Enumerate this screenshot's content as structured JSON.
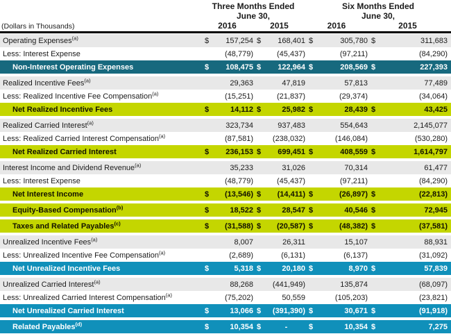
{
  "header": {
    "units_note": "(Dollars in Thousands)",
    "periods": [
      {
        "title": "Three Months Ended",
        "subtitle": "June 30,"
      },
      {
        "title": "Six Months Ended",
        "subtitle": "June 30,"
      }
    ],
    "years": [
      "2016",
      "2015",
      "2016",
      "2015"
    ]
  },
  "table": {
    "currency_symbol": "$",
    "rows": [
      {
        "label": "Operating Expenses",
        "sup": "(a)",
        "dollar": true,
        "bg": "gray",
        "values": [
          "157,254",
          "168,401",
          "305,780",
          "311,683"
        ],
        "gap_after": false
      },
      {
        "label": "Less: Interest Expense",
        "sup": "",
        "dollar": false,
        "bg": "white",
        "values": [
          "(48,779)",
          "(45,437)",
          "(97,211)",
          "(84,290)"
        ],
        "gap_after": false
      },
      {
        "label": "Non-Interest Operating Expenses",
        "sup": "",
        "dollar": true,
        "bg": "teal",
        "values": [
          "108,475",
          "122,964",
          "208,569",
          "227,393"
        ],
        "gap_after": true
      },
      {
        "label": "Realized Incentive Fees",
        "sup": "(a)",
        "dollar": false,
        "bg": "gray",
        "values": [
          "29,363",
          "47,819",
          "57,813",
          "77,489"
        ],
        "gap_after": false
      },
      {
        "label": "Less: Realized Incentive Fee Compensation",
        "sup": "(a)",
        "dollar": false,
        "bg": "white",
        "values": [
          "(15,251)",
          "(21,837)",
          "(29,374)",
          "(34,064)"
        ],
        "gap_after": false
      },
      {
        "label": "Net Realized Incentive Fees",
        "sup": "",
        "dollar": true,
        "bg": "green",
        "values": [
          "14,112",
          "25,982",
          "28,439",
          "43,425"
        ],
        "gap_after": true
      },
      {
        "label": "Realized Carried Interest",
        "sup": "(a)",
        "dollar": false,
        "bg": "gray",
        "values": [
          "323,734",
          "937,483",
          "554,643",
          "2,145,077"
        ],
        "gap_after": false
      },
      {
        "label": "Less: Realized Carried Interest Compensation",
        "sup": "(a)",
        "dollar": false,
        "bg": "white",
        "values": [
          "(87,581)",
          "(238,032)",
          "(146,084)",
          "(530,280)"
        ],
        "gap_after": false
      },
      {
        "label": "Net Realized Carried Interest",
        "sup": "",
        "dollar": true,
        "bg": "green",
        "values": [
          "236,153",
          "699,451",
          "408,559",
          "1,614,797"
        ],
        "gap_after": true
      },
      {
        "label": "Interest Income and Dividend Revenue",
        "sup": "(a)",
        "dollar": false,
        "bg": "gray",
        "values": [
          "35,233",
          "31,026",
          "70,314",
          "61,477"
        ],
        "gap_after": false
      },
      {
        "label": "Less: Interest Expense",
        "sup": "",
        "dollar": false,
        "bg": "white",
        "values": [
          "(48,779)",
          "(45,437)",
          "(97,211)",
          "(84,290)"
        ],
        "gap_after": false
      },
      {
        "label": "Net Interest Income",
        "sup": "",
        "dollar": true,
        "bg": "green",
        "values": [
          "(13,546)",
          "(14,411)",
          "(26,897)",
          "(22,813)"
        ],
        "gap_after": true
      },
      {
        "label": "Equity-Based Compensation",
        "sup": "(b)",
        "dollar": true,
        "bg": "green",
        "values": [
          "18,522",
          "28,547",
          "40,546",
          "72,945"
        ],
        "gap_after": true
      },
      {
        "label": "Taxes and Related Payables",
        "sup": "(c)",
        "dollar": true,
        "bg": "green",
        "values": [
          "(31,588)",
          "(20,587)",
          "(48,382)",
          "(37,581)"
        ],
        "gap_after": true
      },
      {
        "label": "Unrealized Incentive Fees",
        "sup": "(a)",
        "dollar": false,
        "bg": "gray",
        "values": [
          "8,007",
          "26,311",
          "15,107",
          "88,931"
        ],
        "gap_after": false
      },
      {
        "label": "Less: Unrealized Incentive Fee Compensation",
        "sup": "(a)",
        "dollar": false,
        "bg": "white",
        "values": [
          "(2,689)",
          "(6,131)",
          "(6,137)",
          "(31,092)"
        ],
        "gap_after": false
      },
      {
        "label": "Net Unrealized Incentive Fees",
        "sup": "",
        "dollar": true,
        "bg": "blue",
        "values": [
          "5,318",
          "20,180",
          "8,970",
          "57,839"
        ],
        "gap_after": true
      },
      {
        "label": "Unrealized Carried Interest",
        "sup": "(a)",
        "dollar": false,
        "bg": "gray",
        "values": [
          "88,268",
          "(441,949)",
          "135,874",
          "(68,097)"
        ],
        "gap_after": false
      },
      {
        "label": "Less: Unrealized Carried Interest Compensation",
        "sup": "(a)",
        "dollar": false,
        "bg": "white",
        "values": [
          "(75,202)",
          "50,559",
          "(105,203)",
          "(23,821)"
        ],
        "gap_after": false
      },
      {
        "label": "Net Unrealized Carried Interest",
        "sup": "",
        "dollar": true,
        "bg": "blue",
        "values": [
          "13,066",
          "(391,390)",
          "30,671",
          "(91,918)"
        ],
        "gap_after": true
      },
      {
        "label": "Related Payables",
        "sup": "(d)",
        "dollar": true,
        "bg": "blue",
        "values": [
          "10,354",
          "-",
          "10,354",
          "7,275"
        ],
        "gap_after": false
      }
    ]
  },
  "colors": {
    "teal_highlight": "#17697e",
    "green_highlight": "#c4d600",
    "blue_highlight": "#1090ba",
    "band_gray": "#e8e8e8",
    "header_rule": "#000000"
  }
}
